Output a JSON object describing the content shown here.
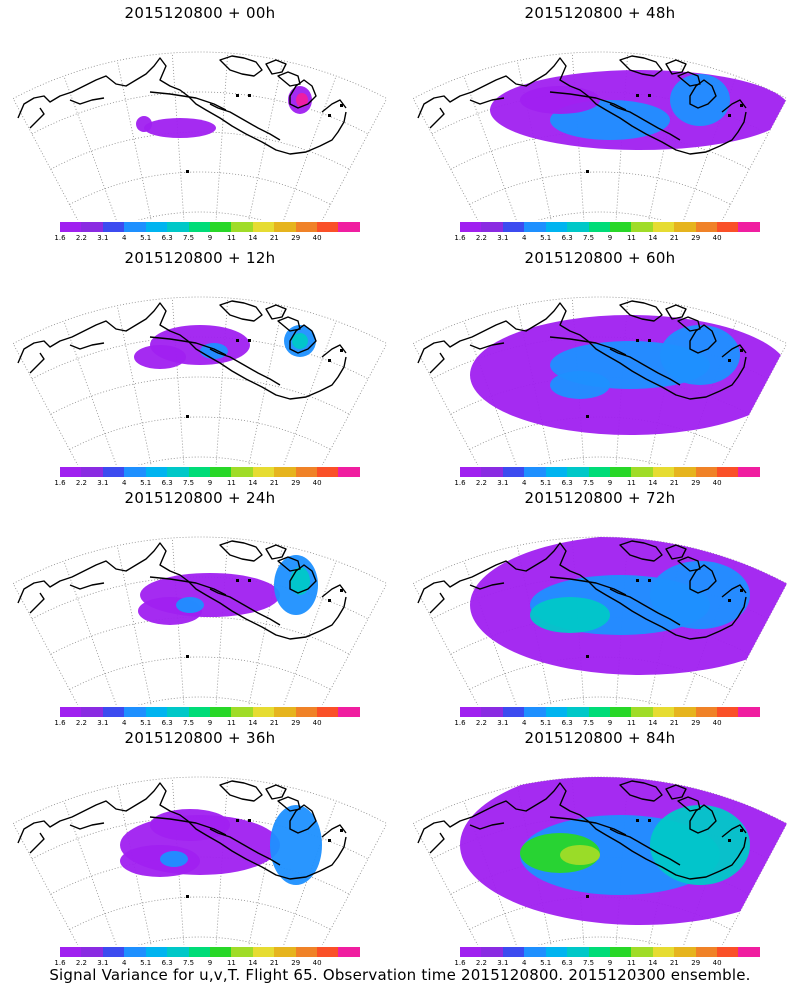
{
  "caption": "Signal Variance for u,v,T. Flight 65. Observation time 2015120800. 2015120300 ensemble.",
  "colorbar": {
    "colors": [
      "#a020f0",
      "#8a2be2",
      "#3c4bf0",
      "#1e90ff",
      "#00b4f0",
      "#00c8c8",
      "#00dc78",
      "#28d728",
      "#a0dc28",
      "#e6dc32",
      "#e6b41e",
      "#f08228",
      "#fa5028",
      "#f01ea0"
    ],
    "ticks": [
      "1.6",
      "2.2",
      "3.1",
      "4",
      "5.1",
      "6.3",
      "7.5",
      "9",
      "11",
      "14",
      "21",
      "29",
      "40"
    ]
  },
  "panels": [
    {
      "title": "2015120800 + 00h",
      "stage": 0
    },
    {
      "title": "2015120800 + 48h",
      "stage": 4
    },
    {
      "title": "2015120800 + 12h",
      "stage": 1
    },
    {
      "title": "2015120800 + 60h",
      "stage": 5
    },
    {
      "title": "2015120800 + 24h",
      "stage": 2
    },
    {
      "title": "2015120800 + 72h",
      "stage": 6
    },
    {
      "title": "2015120800 + 36h",
      "stage": 3
    },
    {
      "title": "2015120800 + 84h",
      "stage": 7
    }
  ]
}
